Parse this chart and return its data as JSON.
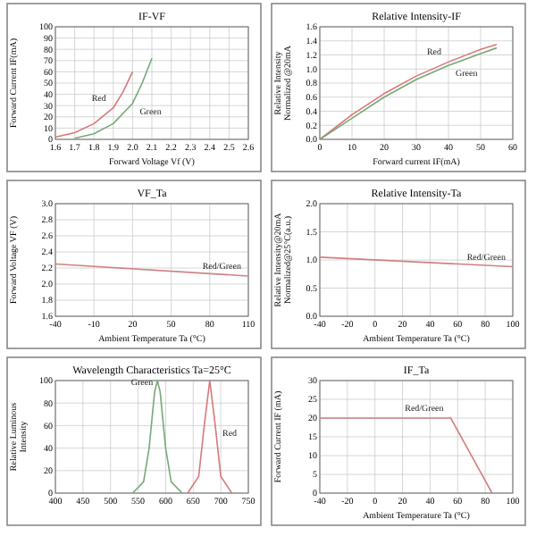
{
  "chart_data": [
    {
      "type": "line",
      "title": "IF-VF",
      "xlabel": "Forward Voltage Vf (V)",
      "ylabel": "Forward Current IF(mA)",
      "xlim": [
        1.6,
        2.6
      ],
      "xticks": [
        1.6,
        1.7,
        1.8,
        1.9,
        {
          "value": 2,
          "label": "2.0"
        },
        2.1,
        2.2,
        2.3,
        2.4,
        2.5,
        2.6
      ],
      "ylim": [
        0,
        100
      ],
      "yticks": [
        0,
        10,
        20,
        30,
        40,
        50,
        60,
        70,
        80,
        90,
        100
      ],
      "grid": true,
      "series": [
        {
          "name": "Red",
          "color": "#d87878",
          "x": [
            1.6,
            1.7,
            1.8,
            1.9,
            1.95,
            2.0
          ],
          "values": [
            2,
            6,
            14,
            28,
            42,
            60
          ]
        },
        {
          "name": "Green",
          "color": "#78a878",
          "x": [
            1.7,
            1.8,
            1.9,
            2.0,
            2.05,
            2.1
          ],
          "values": [
            1,
            5,
            14,
            32,
            50,
            72
          ]
        }
      ]
    },
    {
      "type": "line",
      "title": "Relative Intensity-IF",
      "xlabel": "Forward current IF(mA)",
      "ylabel": "Relative Intensity Normalized @20mA",
      "xlim": [
        0,
        60
      ],
      "xticks": [
        0,
        10,
        20,
        30,
        40,
        50,
        60
      ],
      "ylim": [
        0,
        1.6
      ],
      "yticks": [
        {
          "value": 0,
          "label": "0.0"
        },
        0.2,
        0.4,
        0.6,
        0.8,
        {
          "value": 1,
          "label": "1.0"
        },
        1.2,
        1.4,
        1.6
      ],
      "grid": true,
      "series": [
        {
          "name": "Red",
          "color": "#d87878",
          "x": [
            0,
            10,
            20,
            30,
            40,
            50,
            55
          ],
          "values": [
            0,
            0.35,
            0.65,
            0.9,
            1.1,
            1.28,
            1.35
          ]
        },
        {
          "name": "Green",
          "color": "#78a878",
          "x": [
            0,
            10,
            20,
            30,
            40,
            50,
            55
          ],
          "values": [
            0,
            0.3,
            0.6,
            0.85,
            1.05,
            1.22,
            1.3
          ]
        }
      ]
    },
    {
      "type": "line",
      "title": "VF_Ta",
      "xlabel": "Ambient Temperature Ta (°C)",
      "ylabel": "Forward Voltage VF (V)",
      "xlim": [
        -40,
        110
      ],
      "xticks": [
        -40,
        -10,
        20,
        50,
        80,
        110
      ],
      "ylim": [
        1.6,
        3.0
      ],
      "yticks": [
        1.6,
        1.8,
        {
          "value": 2,
          "label": "2.0"
        },
        2.2,
        2.4,
        2.6,
        2.8,
        {
          "value": 3,
          "label": "3.0"
        }
      ],
      "grid": true,
      "series": [
        {
          "name": "Red/Green",
          "color": "#d08080",
          "x": [
            -40,
            110
          ],
          "values": [
            2.25,
            2.1
          ]
        }
      ]
    },
    {
      "type": "line",
      "title": "Relative Intensity-Ta",
      "xlabel": "Ambient Temperature Ta (°C)",
      "ylabel": "Relative Intensity@20mA Normalized@25°C(a.u.)",
      "xlim": [
        -40,
        100
      ],
      "xticks": [
        -40,
        -20,
        0,
        20,
        40,
        60,
        80,
        100
      ],
      "ylim": [
        0,
        2.0
      ],
      "yticks": [
        {
          "value": 0,
          "label": "0.0"
        },
        0.5,
        {
          "value": 1,
          "label": "1.0"
        },
        1.5,
        {
          "value": 2,
          "label": "2.0"
        }
      ],
      "grid": true,
      "series": [
        {
          "name": "Red/Green",
          "color": "#d08080",
          "x": [
            -40,
            100
          ],
          "values": [
            1.05,
            0.88
          ]
        }
      ]
    },
    {
      "type": "line",
      "title": "Wavelength Characteristics  Ta=25°C",
      "ylabel": "Relative Luminous Intensity",
      "xlim": [
        400,
        750
      ],
      "xticks": [
        400,
        450,
        500,
        550,
        600,
        650,
        700,
        750
      ],
      "ylim": [
        0,
        100
      ],
      "yticks": [
        0,
        20,
        40,
        60,
        80,
        100
      ],
      "grid": true,
      "series": [
        {
          "name": "Green",
          "color": "#78a878",
          "x": [
            540,
            560,
            570,
            580,
            585,
            590,
            600,
            610,
            630
          ],
          "values": [
            0,
            10,
            40,
            90,
            100,
            90,
            40,
            10,
            0
          ]
        },
        {
          "name": "Red",
          "color": "#d87878",
          "x": [
            640,
            660,
            670,
            680,
            690,
            700,
            720
          ],
          "values": [
            0,
            15,
            60,
            100,
            60,
            15,
            0
          ]
        }
      ]
    },
    {
      "type": "line",
      "title": "IF_Ta",
      "xlabel": "Ambient Temperature Ta (°C)",
      "ylabel": "Forward Current IF (mA)",
      "xlim": [
        -40,
        100
      ],
      "xticks": [
        -40,
        -20,
        0,
        20,
        40,
        60,
        80,
        100
      ],
      "ylim": [
        0,
        30
      ],
      "yticks": [
        0,
        5,
        10,
        15,
        20,
        25,
        30
      ],
      "grid": true,
      "series": [
        {
          "name": "Red/Green",
          "color": "#d08080",
          "x": [
            -40,
            55,
            85
          ],
          "values": [
            20,
            20,
            0
          ]
        }
      ]
    }
  ]
}
